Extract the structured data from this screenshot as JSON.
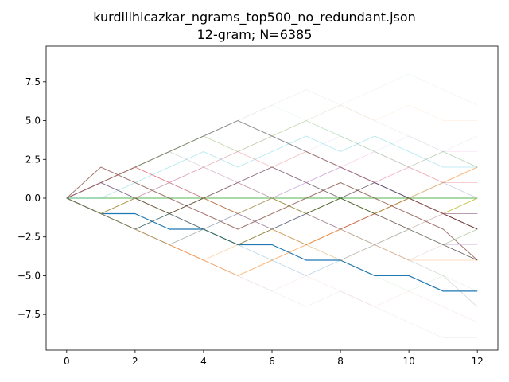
{
  "chart_data": {
    "type": "line",
    "title": "kurdilihicazkar_ngrams_top500_no_redundant.json",
    "subtitle": "12-gram; N=6385",
    "xlim": [
      -0.6,
      12.6
    ],
    "ylim": [
      -9.8,
      9.8
    ],
    "x_ticks": [
      0,
      2,
      4,
      6,
      8,
      10,
      12
    ],
    "y_ticks": [
      7.5,
      5.0,
      2.5,
      0.0,
      -2.5,
      -5.0,
      -7.5
    ],
    "x_tick_labels": [
      "0",
      "2",
      "4",
      "6",
      "8",
      "10",
      "12"
    ],
    "y_tick_labels": [
      "7.5",
      "5.0",
      "2.5",
      "0.0",
      "−2.5",
      "−5.0",
      "−7.5"
    ],
    "grid": false,
    "x": [
      0,
      1,
      2,
      3,
      4,
      5,
      6,
      7,
      8,
      9,
      10,
      11,
      12
    ],
    "series": [
      {
        "values": [
          0,
          -1,
          -1,
          -2,
          -2,
          -3,
          -3,
          -4,
          -4,
          -5,
          -5,
          -6,
          -6
        ],
        "color": "#1f77b4",
        "alpha": 1.0,
        "width": 1.2
      },
      {
        "values": [
          0,
          1,
          2,
          3,
          4,
          5,
          4,
          3,
          2,
          1,
          0,
          -1,
          -2
        ],
        "color": "#7f7f7f",
        "alpha": 0.85,
        "width": 1.0
      },
      {
        "values": [
          0,
          -1,
          -2,
          -3,
          -4,
          -5,
          -4,
          -3,
          -2,
          -1,
          0,
          1,
          2
        ],
        "color": "#ff7f0e",
        "alpha": 0.55,
        "width": 1.0
      },
      {
        "values": [
          0,
          0,
          0,
          0,
          0,
          0,
          0,
          0,
          0,
          0,
          0,
          0,
          0
        ],
        "color": "#2ca02c",
        "alpha": 0.8,
        "width": 1.0
      },
      {
        "values": [
          0,
          -1,
          0,
          -1,
          0,
          -1,
          0,
          -1,
          0,
          -1,
          0,
          -1,
          0
        ],
        "color": "#bcbd22",
        "alpha": 0.8,
        "width": 1.0
      },
      {
        "values": [
          0,
          2,
          1,
          0,
          -1,
          -2,
          -1,
          0,
          1,
          0,
          -1,
          -2,
          -4
        ],
        "color": "#8c564b",
        "alpha": 0.8,
        "width": 1.0
      },
      {
        "values": [
          0,
          1,
          0,
          -1,
          -2,
          -3,
          -2,
          -1,
          0,
          1,
          0,
          -1,
          -2
        ],
        "color": "#000000",
        "alpha": 0.6,
        "width": 0.9
      },
      {
        "values": [
          0,
          -1,
          -2,
          -1,
          0,
          1,
          2,
          1,
          0,
          -1,
          -2,
          -3,
          -4
        ],
        "color": "#000000",
        "alpha": 0.6,
        "width": 0.9
      },
      {
        "values": [
          0,
          1,
          2,
          1,
          0,
          -1,
          -2,
          -3,
          -2,
          -1,
          0,
          -1,
          -2
        ],
        "color": "#d62728",
        "alpha": 0.45,
        "width": 0.9
      },
      {
        "values": [
          0,
          -1,
          -2,
          -3,
          -2,
          -1,
          0,
          1,
          2,
          1,
          0,
          -1,
          -1
        ],
        "color": "#9467bd",
        "alpha": 0.45,
        "width": 0.9
      },
      {
        "values": [
          0,
          1,
          2,
          3,
          2,
          1,
          0,
          -1,
          -2,
          -3,
          -4,
          -5,
          -7
        ],
        "color": "#7f7f7f",
        "alpha": 0.3,
        "width": 0.8
      },
      {
        "values": [
          0,
          0,
          1,
          2,
          3,
          2,
          3,
          4,
          3,
          4,
          3,
          2,
          2
        ],
        "color": "#17becf",
        "alpha": 0.35,
        "width": 0.8
      },
      {
        "values": [
          0,
          -1,
          -2,
          -3,
          -4,
          -3,
          -2,
          -3,
          -4,
          -3,
          -4,
          -4,
          -4
        ],
        "color": "#ff7f0e",
        "alpha": 0.35,
        "width": 0.8
      },
      {
        "values": [
          0,
          1,
          0,
          1,
          2,
          1,
          2,
          1,
          2,
          3,
          2,
          1,
          0
        ],
        "color": "#e377c2",
        "alpha": 0.3,
        "width": 0.8
      },
      {
        "values": [
          0,
          -1,
          0,
          1,
          0,
          1,
          0,
          -1,
          -2,
          -1,
          -2,
          -1,
          -1
        ],
        "color": "#8c564b",
        "alpha": 0.4,
        "width": 0.8
      },
      {
        "values": [
          0,
          1,
          2,
          3,
          4,
          3,
          4,
          5,
          4,
          3,
          2,
          3,
          2
        ],
        "color": "#2ca02c",
        "alpha": 0.3,
        "width": 0.8
      },
      {
        "values": [
          0,
          -1,
          -2,
          -1,
          -2,
          -3,
          -4,
          -5,
          -4,
          -3,
          -2,
          -3,
          -2
        ],
        "color": "#1f77b4",
        "alpha": 0.3,
        "width": 0.8
      },
      {
        "values": [
          0,
          1,
          0,
          -1,
          0,
          -1,
          -2,
          -1,
          -2,
          -3,
          -2,
          -3,
          -3
        ],
        "color": "#9467bd",
        "alpha": 0.35,
        "width": 0.8
      },
      {
        "values": [
          0,
          1,
          2,
          1,
          2,
          3,
          2,
          3,
          2,
          1,
          2,
          1,
          1
        ],
        "color": "#d62728",
        "alpha": 0.3,
        "width": 0.8
      },
      {
        "values": [
          0,
          -1,
          -2,
          -3,
          -2,
          -3,
          -2,
          -3,
          -2,
          -3,
          -2,
          -3,
          -2
        ],
        "color": "#bcbd22",
        "alpha": 0.3,
        "width": 0.8
      },
      {
        "values": [
          0,
          1,
          2,
          3,
          4,
          5,
          6,
          7,
          6,
          5,
          4,
          3,
          2
        ],
        "color": "#7f7f7f",
        "alpha": 0.12,
        "width": 0.7
      },
      {
        "values": [
          0,
          1,
          2,
          3,
          4,
          5,
          6,
          5,
          6,
          7,
          8,
          7,
          6
        ],
        "color": "#1f77b4",
        "alpha": 0.08,
        "width": 0.7
      },
      {
        "values": [
          0,
          -1,
          -2,
          -3,
          -4,
          -5,
          -6,
          -7,
          -6,
          -7,
          -8,
          -9,
          -9
        ],
        "color": "#7f7f7f",
        "alpha": 0.12,
        "width": 0.7
      },
      {
        "values": [
          0,
          -1,
          -2,
          -3,
          -4,
          -5,
          -6,
          -5,
          -6,
          -7,
          -6,
          -7,
          -8
        ],
        "color": "#d62728",
        "alpha": 0.1,
        "width": 0.7
      },
      {
        "values": [
          0,
          1,
          2,
          3,
          4,
          3,
          4,
          5,
          6,
          5,
          6,
          5,
          5
        ],
        "color": "#ff7f0e",
        "alpha": 0.12,
        "width": 0.7
      },
      {
        "values": [
          0,
          -1,
          -2,
          -1,
          -2,
          -3,
          -2,
          -3,
          -4,
          -5,
          -6,
          -5,
          -6
        ],
        "color": "#2ca02c",
        "alpha": 0.12,
        "width": 0.7
      },
      {
        "values": [
          0,
          1,
          0,
          1,
          2,
          3,
          4,
          3,
          4,
          3,
          4,
          3,
          4
        ],
        "color": "#9467bd",
        "alpha": 0.12,
        "width": 0.7
      },
      {
        "values": [
          0,
          -1,
          0,
          -1,
          -2,
          -1,
          -2,
          -1,
          -2,
          -3,
          -4,
          -3,
          -4
        ],
        "color": "#8c564b",
        "alpha": 0.18,
        "width": 0.7
      },
      {
        "values": [
          0,
          1,
          2,
          1,
          0,
          1,
          0,
          1,
          0,
          1,
          2,
          3,
          3
        ],
        "color": "#e377c2",
        "alpha": 0.18,
        "width": 0.7
      },
      {
        "values": [
          0,
          -1,
          -2,
          -3,
          -2,
          -1,
          -2,
          -1,
          0,
          -1,
          0,
          1,
          0
        ],
        "color": "#17becf",
        "alpha": 0.2,
        "width": 0.7
      }
    ]
  }
}
